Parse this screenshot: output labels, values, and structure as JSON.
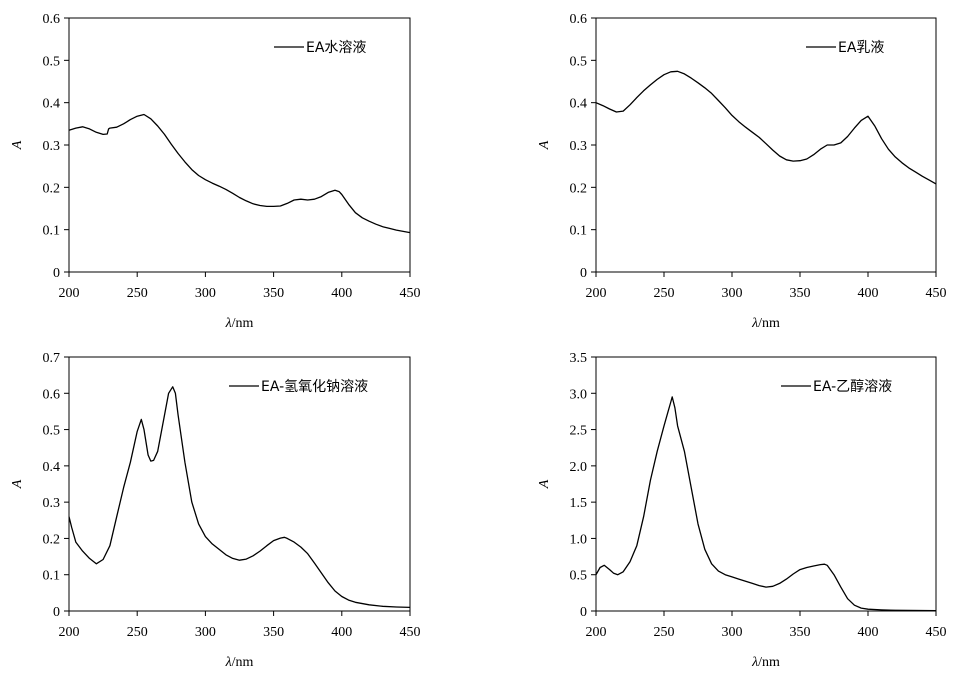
{
  "chart_data": [
    {
      "type": "line",
      "xlabel_symbol": "λ",
      "xlabel_unit": "/nm",
      "ylabel": "A",
      "xlim": [
        200,
        450
      ],
      "ylim": [
        0,
        0.6
      ],
      "xticks": [
        200,
        250,
        300,
        350,
        400,
        450
      ],
      "yticks": [
        0,
        0.1,
        0.2,
        0.3,
        0.4,
        0.5,
        0.6
      ],
      "ytick_labels": [
        "0",
        "0.1",
        "0.2",
        "0.3",
        "0.4",
        "0.5",
        "0.6"
      ],
      "grid": false,
      "legend_position": "top-right",
      "series": [
        {
          "name": "EA水溶液",
          "color": "#000000",
          "x": [
            200,
            205,
            210,
            215,
            220,
            225,
            228,
            229,
            230,
            235,
            240,
            245,
            250,
            255,
            260,
            265,
            270,
            275,
            280,
            285,
            290,
            295,
            300,
            305,
            310,
            315,
            320,
            325,
            330,
            335,
            340,
            345,
            350,
            355,
            360,
            365,
            370,
            375,
            380,
            385,
            390,
            395,
            398,
            400,
            405,
            410,
            415,
            420,
            425,
            430,
            435,
            440,
            445,
            450
          ],
          "y": [
            0.335,
            0.34,
            0.343,
            0.338,
            0.33,
            0.325,
            0.326,
            0.338,
            0.34,
            0.342,
            0.35,
            0.36,
            0.368,
            0.372,
            0.362,
            0.345,
            0.325,
            0.302,
            0.28,
            0.26,
            0.242,
            0.228,
            0.218,
            0.21,
            0.203,
            0.195,
            0.186,
            0.176,
            0.168,
            0.161,
            0.157,
            0.155,
            0.155,
            0.156,
            0.162,
            0.17,
            0.172,
            0.17,
            0.172,
            0.178,
            0.188,
            0.193,
            0.19,
            0.183,
            0.16,
            0.14,
            0.128,
            0.12,
            0.113,
            0.107,
            0.103,
            0.099,
            0.096,
            0.093
          ]
        }
      ]
    },
    {
      "type": "line",
      "xlabel_symbol": "λ",
      "xlabel_unit": "/nm",
      "ylabel": "A",
      "xlim": [
        200,
        450
      ],
      "ylim": [
        0,
        0.6
      ],
      "xticks": [
        200,
        250,
        300,
        350,
        400,
        450
      ],
      "yticks": [
        0,
        0.1,
        0.2,
        0.3,
        0.4,
        0.5,
        0.6
      ],
      "ytick_labels": [
        "0",
        "0.1",
        "0.2",
        "0.3",
        "0.4",
        "0.5",
        "0.6"
      ],
      "grid": false,
      "legend_position": "top-right",
      "series": [
        {
          "name": "EA乳液",
          "color": "#000000",
          "x": [
            200,
            205,
            210,
            215,
            220,
            225,
            230,
            235,
            240,
            245,
            250,
            255,
            260,
            265,
            270,
            275,
            280,
            285,
            290,
            295,
            300,
            305,
            310,
            315,
            320,
            325,
            330,
            335,
            340,
            345,
            350,
            355,
            360,
            365,
            370,
            375,
            380,
            385,
            390,
            395,
            400,
            405,
            410,
            415,
            420,
            425,
            430,
            435,
            440,
            445,
            450
          ],
          "y": [
            0.4,
            0.393,
            0.385,
            0.378,
            0.38,
            0.395,
            0.412,
            0.428,
            0.442,
            0.455,
            0.466,
            0.473,
            0.474,
            0.468,
            0.458,
            0.447,
            0.435,
            0.422,
            0.405,
            0.388,
            0.37,
            0.355,
            0.342,
            0.33,
            0.318,
            0.303,
            0.288,
            0.274,
            0.265,
            0.262,
            0.263,
            0.267,
            0.277,
            0.29,
            0.3,
            0.3,
            0.305,
            0.32,
            0.34,
            0.358,
            0.368,
            0.345,
            0.315,
            0.29,
            0.272,
            0.258,
            0.246,
            0.236,
            0.226,
            0.217,
            0.208
          ]
        }
      ]
    },
    {
      "type": "line",
      "xlabel_symbol": "λ",
      "xlabel_unit": "/nm",
      "ylabel": "A",
      "xlim": [
        200,
        450
      ],
      "ylim": [
        0,
        0.7
      ],
      "xticks": [
        200,
        250,
        300,
        350,
        400,
        450
      ],
      "yticks": [
        0,
        0.1,
        0.2,
        0.3,
        0.4,
        0.5,
        0.6,
        0.7
      ],
      "ytick_labels": [
        "0",
        "0.1",
        "0.2",
        "0.3",
        "0.4",
        "0.5",
        "0.6",
        "0.7"
      ],
      "grid": false,
      "legend_position": "top-right",
      "series": [
        {
          "name": "EA-氢氧化钠溶液",
          "color": "#000000",
          "x": [
            200,
            202,
            205,
            210,
            215,
            220,
            225,
            230,
            235,
            240,
            245,
            250,
            253,
            255,
            258,
            260,
            262,
            265,
            270,
            273,
            276,
            278,
            280,
            285,
            290,
            295,
            300,
            305,
            310,
            315,
            320,
            325,
            330,
            335,
            340,
            345,
            350,
            355,
            358,
            360,
            365,
            370,
            375,
            380,
            385,
            390,
            395,
            400,
            405,
            410,
            420,
            430,
            440,
            450
          ],
          "y": [
            0.26,
            0.23,
            0.19,
            0.165,
            0.145,
            0.13,
            0.142,
            0.18,
            0.26,
            0.34,
            0.41,
            0.495,
            0.528,
            0.5,
            0.43,
            0.413,
            0.415,
            0.44,
            0.54,
            0.6,
            0.618,
            0.6,
            0.54,
            0.41,
            0.3,
            0.24,
            0.205,
            0.185,
            0.17,
            0.155,
            0.145,
            0.14,
            0.143,
            0.152,
            0.165,
            0.18,
            0.194,
            0.201,
            0.203,
            0.2,
            0.19,
            0.176,
            0.158,
            0.132,
            0.105,
            0.078,
            0.055,
            0.04,
            0.03,
            0.024,
            0.017,
            0.013,
            0.011,
            0.01
          ]
        }
      ]
    },
    {
      "type": "line",
      "xlabel_symbol": "λ",
      "xlabel_unit": "/nm",
      "ylabel": "A",
      "xlim": [
        200,
        450
      ],
      "ylim": [
        0,
        3.5
      ],
      "xticks": [
        200,
        250,
        300,
        350,
        400,
        450
      ],
      "yticks": [
        0,
        0.5,
        1.0,
        1.5,
        2.0,
        2.5,
        3.0,
        3.5
      ],
      "ytick_labels": [
        "0",
        "0.5",
        "1.0",
        "1.5",
        "2.0",
        "2.5",
        "3.0",
        "3.5"
      ],
      "grid": false,
      "legend_position": "top-right",
      "series": [
        {
          "name": "EA-乙醇溶液",
          "color": "#000000",
          "x": [
            200,
            203,
            206,
            210,
            213,
            216,
            220,
            225,
            230,
            235,
            240,
            245,
            250,
            253,
            255,
            256,
            258,
            260,
            265,
            270,
            275,
            280,
            285,
            290,
            295,
            300,
            305,
            310,
            315,
            320,
            325,
            330,
            335,
            340,
            345,
            350,
            355,
            360,
            365,
            368,
            370,
            375,
            380,
            385,
            390,
            395,
            400,
            410,
            420,
            430,
            440,
            450
          ],
          "y": [
            0.5,
            0.6,
            0.63,
            0.57,
            0.52,
            0.5,
            0.54,
            0.68,
            0.9,
            1.3,
            1.8,
            2.2,
            2.55,
            2.75,
            2.88,
            2.95,
            2.8,
            2.55,
            2.2,
            1.7,
            1.2,
            0.85,
            0.65,
            0.55,
            0.5,
            0.47,
            0.44,
            0.41,
            0.38,
            0.35,
            0.33,
            0.34,
            0.38,
            0.44,
            0.51,
            0.57,
            0.6,
            0.62,
            0.64,
            0.645,
            0.63,
            0.5,
            0.33,
            0.17,
            0.08,
            0.04,
            0.025,
            0.015,
            0.01,
            0.008,
            0.007,
            0.006
          ]
        }
      ]
    }
  ]
}
